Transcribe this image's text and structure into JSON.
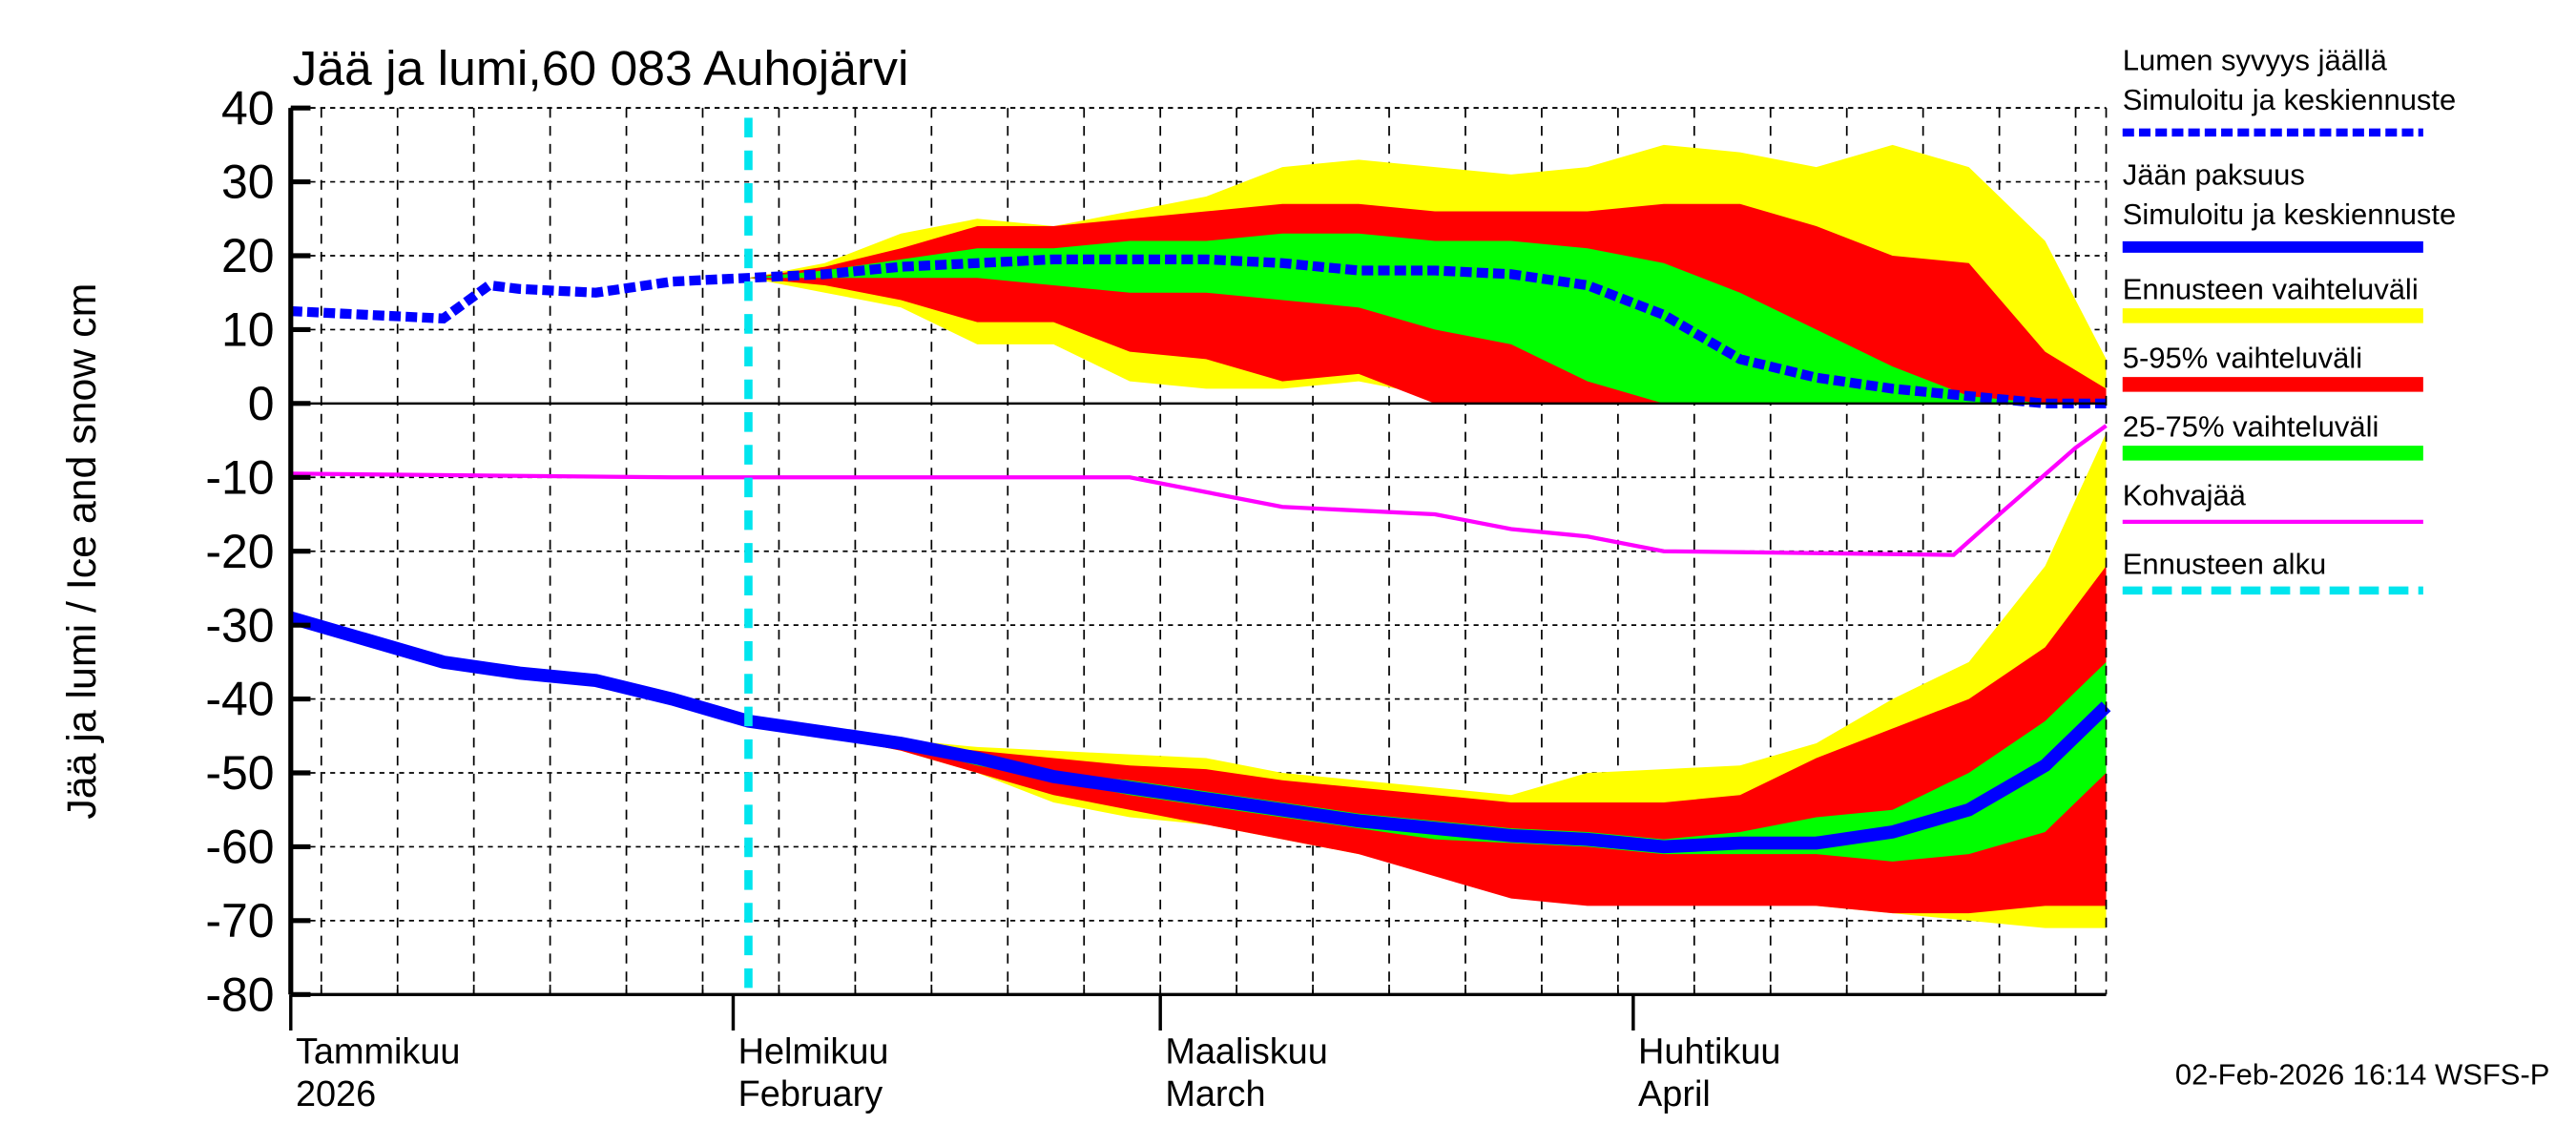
{
  "chart_data": {
    "type": "area",
    "title": "Jää ja lumi,60 083 Auhojärvi",
    "ylabel": "Jää ja lumi / Ice and snow    cm",
    "ylim": [
      -80,
      40
    ],
    "yticks": [
      40,
      30,
      20,
      10,
      0,
      -10,
      -20,
      -30,
      -40,
      -50,
      -60,
      -70,
      -80
    ],
    "xlim": [
      "2026-01-03",
      "2026-05-02"
    ],
    "grid": true,
    "legend_position": "right",
    "months": [
      {
        "date": "2026-01-03",
        "fi": "Tammikuu",
        "en": "2026"
      },
      {
        "date": "2026-02-01",
        "fi": "Helmikuu",
        "en": "February"
      },
      {
        "date": "2026-03-01",
        "fi": "Maaliskuu",
        "en": "March"
      },
      {
        "date": "2026-04-01",
        "fi": "Huhtikuu",
        "en": "April"
      }
    ],
    "forecast_start": "2026-02-02",
    "colors": {
      "snow": "#0000ff",
      "ice": "#0000ff",
      "range": "#ffff00",
      "p5_95": "#ff0000",
      "p25_75": "#00ff00",
      "slush": "#ff00ff",
      "forecast": "#00e5ee"
    },
    "legend": [
      {
        "label1": "Lumen syvyys jäällä",
        "label2": "Simuloitu ja keskiennuste",
        "key": "snow",
        "style": "dashed"
      },
      {
        "label1": "Jään paksuus",
        "label2": "Simuloitu ja keskiennuste",
        "key": "ice",
        "style": "solid"
      },
      {
        "label1": "Ennusteen vaihteluväli",
        "key": "range",
        "style": "band"
      },
      {
        "label1": "5-95% vaihteluväli",
        "key": "p5_95",
        "style": "band"
      },
      {
        "label1": "25-75% vaihteluväli",
        "key": "p25_75",
        "style": "band"
      },
      {
        "label1": "Kohvajää",
        "key": "slush",
        "style": "thin"
      },
      {
        "label1": "Ennusteen alku",
        "key": "forecast",
        "style": "dashed"
      }
    ],
    "snow_depth": {
      "x": [
        "2026-01-03",
        "2026-01-08",
        "2026-01-13",
        "2026-01-16",
        "2026-01-18",
        "2026-01-23",
        "2026-01-28",
        "2026-02-02",
        "2026-02-07",
        "2026-02-12",
        "2026-02-17",
        "2026-02-22",
        "2026-02-27",
        "2026-03-04",
        "2026-03-09",
        "2026-03-14",
        "2026-03-19",
        "2026-03-24",
        "2026-03-29",
        "2026-04-03",
        "2026-04-08",
        "2026-04-13",
        "2026-04-18",
        "2026-04-23",
        "2026-04-28",
        "2026-05-02"
      ],
      "y": [
        12.5,
        12,
        11.5,
        16,
        15.5,
        15,
        16.5,
        17,
        17.5,
        18.5,
        19,
        19.5,
        19.5,
        19.5,
        19,
        18,
        18,
        17.5,
        16,
        12,
        6,
        3.5,
        2,
        1,
        0,
        0
      ]
    },
    "snow_bands": {
      "x": [
        "2026-02-02",
        "2026-02-07",
        "2026-02-12",
        "2026-02-17",
        "2026-02-22",
        "2026-02-27",
        "2026-03-04",
        "2026-03-09",
        "2026-03-14",
        "2026-03-19",
        "2026-03-24",
        "2026-03-29",
        "2026-04-03",
        "2026-04-08",
        "2026-04-13",
        "2026-04-18",
        "2026-04-23",
        "2026-04-28",
        "2026-05-02"
      ],
      "range_hi": [
        17,
        19,
        23,
        25,
        24,
        26,
        28,
        32,
        33,
        32,
        31,
        32,
        35,
        34,
        32,
        35,
        32,
        22,
        6
      ],
      "range_lo": [
        17,
        15,
        13,
        8,
        8,
        3,
        2,
        2,
        3,
        1,
        0,
        0,
        0,
        0,
        0,
        0,
        0,
        0,
        0
      ],
      "p95": [
        17,
        18.5,
        21,
        24,
        24,
        25,
        26,
        27,
        27,
        26,
        26,
        26,
        27,
        27,
        24,
        20,
        19,
        7,
        2
      ],
      "p5": [
        17,
        16,
        14,
        11,
        11,
        7,
        6,
        3,
        4,
        0,
        0,
        0,
        0,
        0,
        0,
        0,
        0,
        0,
        0
      ],
      "p75": [
        17,
        18,
        19.5,
        21,
        21,
        22,
        22,
        23,
        23,
        22,
        22,
        21,
        19,
        15,
        10,
        5,
        1,
        0,
        0
      ],
      "p25": [
        17,
        17,
        17,
        17,
        16,
        15,
        15,
        14,
        13,
        10,
        8,
        3,
        0,
        0,
        0,
        0,
        0,
        0,
        0
      ]
    },
    "ice_thickness": {
      "x": [
        "2026-01-03",
        "2026-01-08",
        "2026-01-13",
        "2026-01-18",
        "2026-01-23",
        "2026-01-28",
        "2026-02-02",
        "2026-02-07",
        "2026-02-12",
        "2026-02-17",
        "2026-02-22",
        "2026-02-27",
        "2026-03-04",
        "2026-03-09",
        "2026-03-14",
        "2026-03-19",
        "2026-03-24",
        "2026-03-29",
        "2026-04-03",
        "2026-04-08",
        "2026-04-13",
        "2026-04-18",
        "2026-04-23",
        "2026-04-28",
        "2026-05-02"
      ],
      "y": [
        -29,
        -32,
        -35,
        -36.5,
        -37.5,
        -40,
        -43,
        -44.5,
        -46,
        -48,
        -50.5,
        -52,
        -53.5,
        -55,
        -56.5,
        -57.5,
        -58.5,
        -59,
        -60,
        -59.5,
        -59.5,
        -58,
        -55,
        -49,
        -41
      ]
    },
    "ice_bands": {
      "x": [
        "2026-02-02",
        "2026-02-07",
        "2026-02-12",
        "2026-02-17",
        "2026-02-22",
        "2026-02-27",
        "2026-03-04",
        "2026-03-09",
        "2026-03-14",
        "2026-03-19",
        "2026-03-24",
        "2026-03-29",
        "2026-04-03",
        "2026-04-08",
        "2026-04-13",
        "2026-04-18",
        "2026-04-23",
        "2026-04-28",
        "2026-05-02"
      ],
      "range_hi": [
        -43,
        -44,
        -45.5,
        -46.5,
        -47,
        -47.5,
        -48,
        -50,
        -51,
        -52,
        -53,
        -50,
        -49.5,
        -49,
        -46,
        -40,
        -35,
        -22,
        -4
      ],
      "range_lo": [
        -43,
        -45,
        -47,
        -50,
        -54,
        -56,
        -57,
        -59,
        -61,
        -63,
        -65,
        -66,
        -67,
        -67,
        -68,
        -69,
        -70,
        -71,
        -71
      ],
      "p95": [
        -43,
        -44.3,
        -46,
        -47,
        -48,
        -49,
        -49.5,
        -51,
        -52,
        -53,
        -54,
        -54,
        -54,
        -53,
        -48,
        -44,
        -40,
        -33,
        -22
      ],
      "p5": [
        -43,
        -45,
        -47,
        -50,
        -53,
        -55,
        -57,
        -59,
        -61,
        -64,
        -67,
        -68,
        -68,
        -68,
        -68,
        -69,
        -69,
        -68,
        -68
      ],
      "p75": [
        -43,
        -44.5,
        -46,
        -47.5,
        -50,
        -51,
        -52.5,
        -54,
        -55.5,
        -56.5,
        -57.5,
        -58,
        -59,
        -58,
        -56,
        -55,
        -50,
        -43,
        -35
      ],
      "p25": [
        -43,
        -44.7,
        -46.5,
        -49,
        -51,
        -53,
        -54.5,
        -56,
        -57.5,
        -59,
        -59.5,
        -60,
        -61,
        -61,
        -61,
        -62,
        -61,
        -58,
        -50
      ]
    },
    "slush_ice": {
      "x": [
        "2026-01-03",
        "2026-01-28",
        "2026-02-27",
        "2026-03-04",
        "2026-03-09",
        "2026-03-19",
        "2026-03-24",
        "2026-03-29",
        "2026-04-03",
        "2026-04-22",
        "2026-04-25",
        "2026-04-30",
        "2026-05-02"
      ],
      "y": [
        -9.5,
        -10,
        -10,
        -12,
        -14,
        -15,
        -17,
        -18,
        -20,
        -20.5,
        -15,
        -6,
        -3
      ]
    }
  },
  "footer": "02-Feb-2026 16:14 WSFS-P"
}
